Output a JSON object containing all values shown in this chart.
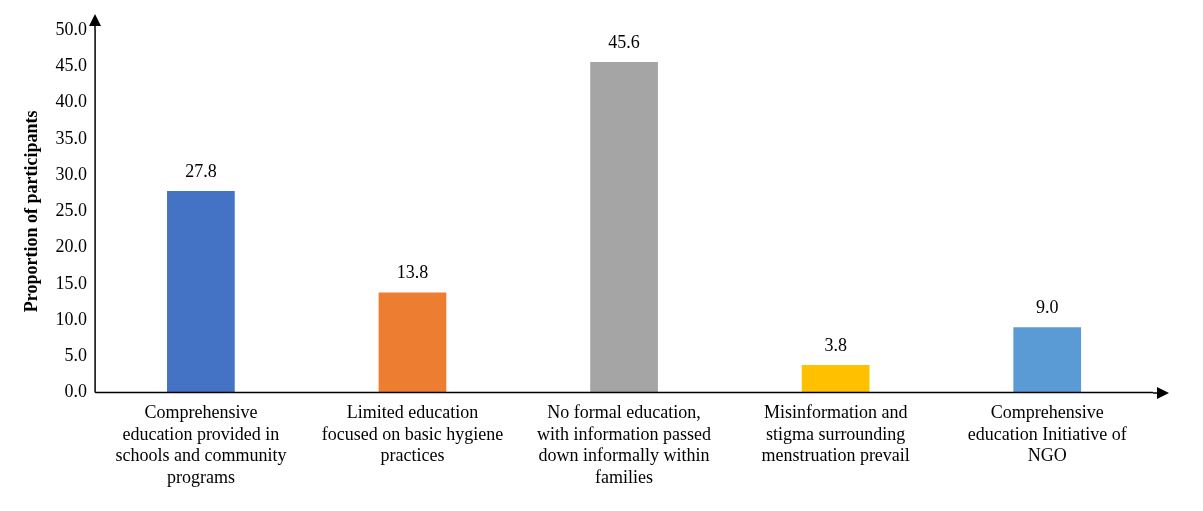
{
  "chart_data": {
    "type": "bar",
    "ylabel": "Proportion of participants",
    "categories": [
      "Comprehensive education provided in schools and community programs",
      "Limited education focused on basic hygiene practices",
      "No formal education, with information passed down informally within families",
      "Misinformation and stigma surrounding menstruation prevail",
      "Comprehensive education Initiative of NGO"
    ],
    "values": [
      27.8,
      13.8,
      45.6,
      3.8,
      9.0
    ],
    "colors": [
      "#4472c4",
      "#ed7d31",
      "#a5a5a5",
      "#ffc000",
      "#5b9bd5"
    ],
    "value_labels": [
      "27.8",
      "13.8",
      "45.6",
      "3.8",
      "9.0"
    ],
    "ylim": [
      0,
      50
    ],
    "yticks": [
      {
        "value": 0,
        "label": "0.0"
      },
      {
        "value": 5,
        "label": "5.0"
      },
      {
        "value": 10,
        "label": "10.0"
      },
      {
        "value": 15,
        "label": "15.0"
      },
      {
        "value": 20,
        "label": "20.0"
      },
      {
        "value": 25,
        "label": "25.0"
      },
      {
        "value": 30,
        "label": "30.0"
      },
      {
        "value": 35,
        "label": "35.0"
      },
      {
        "value": 40,
        "label": "40.0"
      },
      {
        "value": 45,
        "label": "45.0"
      },
      {
        "value": 50,
        "label": "50.0"
      }
    ],
    "grid": false,
    "legend": false
  }
}
